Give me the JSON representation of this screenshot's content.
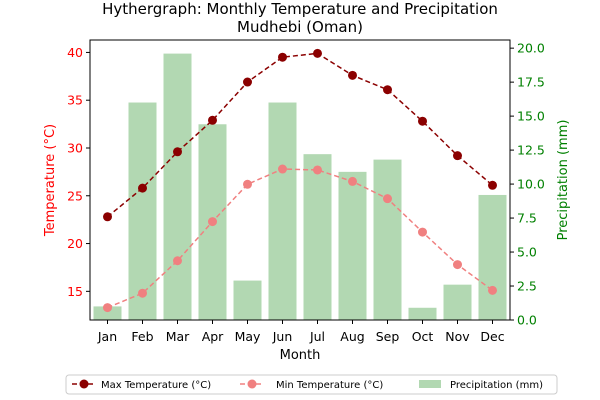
{
  "chart_data": {
    "type": "bar",
    "title_line1": "Hythergraph: Monthly Temperature and Precipitation",
    "title_line2": "Mudhebi (Oman)",
    "xlabel": "Month",
    "ylabel_left": "Temperature (°C)",
    "ylabel_right": "Precipitation (mm)",
    "categories": [
      "Jan",
      "Feb",
      "Mar",
      "Apr",
      "May",
      "Jun",
      "Jul",
      "Aug",
      "Sep",
      "Oct",
      "Nov",
      "Dec"
    ],
    "ylim_left": [
      12.0,
      41.3
    ],
    "ylim_right": [
      0,
      20.6
    ],
    "yticks_left": [
      15,
      20,
      25,
      30,
      35,
      40
    ],
    "yticks_right": [
      0.0,
      2.5,
      5.0,
      7.5,
      10.0,
      12.5,
      15.0,
      17.5,
      20.0
    ],
    "series": [
      {
        "name": "Max Temperature (°C)",
        "kind": "line",
        "axis": "left",
        "color": "#8b0000",
        "dashed": true,
        "values": [
          22.8,
          25.8,
          29.6,
          32.9,
          36.9,
          39.5,
          39.9,
          37.6,
          36.1,
          32.8,
          29.2,
          26.1
        ]
      },
      {
        "name": "Min Temperature (°C)",
        "kind": "line",
        "axis": "left",
        "color": "#f08080",
        "dashed": true,
        "values": [
          13.3,
          14.8,
          18.2,
          22.3,
          26.2,
          27.8,
          27.7,
          26.5,
          24.7,
          21.2,
          17.8,
          15.1
        ]
      },
      {
        "name": "Precipitation (mm)",
        "kind": "bar",
        "axis": "right",
        "color": "#b2d8b2",
        "values": [
          1.0,
          16.0,
          19.6,
          14.4,
          2.9,
          16.0,
          12.2,
          10.9,
          11.8,
          0.9,
          2.6,
          9.2
        ]
      }
    ],
    "legend_position": "bottom-center",
    "grid": false
  }
}
